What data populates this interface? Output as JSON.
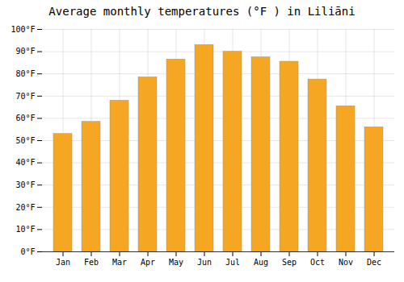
{
  "chart_data": {
    "type": "bar",
    "title": "Average monthly temperatures (°F ) in Liliāni",
    "categories": [
      "Jan",
      "Feb",
      "Mar",
      "Apr",
      "May",
      "Jun",
      "Jul",
      "Aug",
      "Sep",
      "Oct",
      "Nov",
      "Dec"
    ],
    "values": [
      53,
      58.5,
      68,
      78.5,
      86.5,
      93,
      90,
      87.5,
      85.5,
      77.5,
      65.5,
      56
    ],
    "color": "#F5A623",
    "ylim": [
      0,
      100
    ],
    "yticks": [
      {
        "value": 0,
        "label": "0°F"
      },
      {
        "value": 10,
        "label": "10°F"
      },
      {
        "value": 20,
        "label": "20°F"
      },
      {
        "value": 30,
        "label": "30°F"
      },
      {
        "value": 40,
        "label": "40°F"
      },
      {
        "value": 50,
        "label": "50°F"
      },
      {
        "value": 60,
        "label": "60°F"
      },
      {
        "value": 70,
        "label": "70°F"
      },
      {
        "value": 80,
        "label": "80°F"
      },
      {
        "value": 90,
        "label": "90°F"
      },
      {
        "value": 100,
        "label": "100°F"
      }
    ],
    "grid": true
  }
}
